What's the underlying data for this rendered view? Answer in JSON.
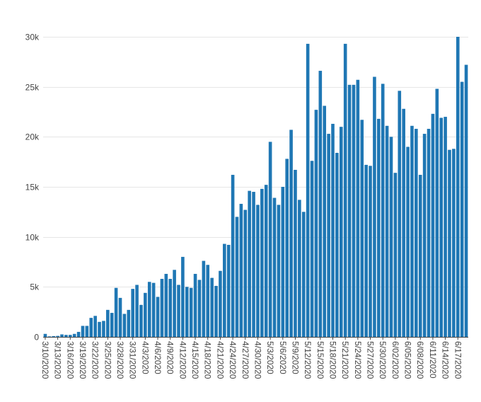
{
  "chart_data": {
    "type": "bar",
    "title": "",
    "xlabel": "",
    "ylabel": "",
    "ylim": [
      0,
      30000
    ],
    "grid": true,
    "legend": "none",
    "bar_color": "#1f77b4",
    "y_ticks": [
      0,
      5000,
      10000,
      15000,
      20000,
      25000,
      30000
    ],
    "y_tick_labels": [
      "0",
      "5k",
      "10k",
      "15k",
      "20k",
      "25k",
      "30k"
    ],
    "x_tick_labels": [
      "3/10/2020",
      "3/13/2020",
      "3/16/2020",
      "3/19/2020",
      "3/22/2020",
      "3/25/2020",
      "3/28/2020",
      "3/31/2020",
      "4/3/2020",
      "4/6/2020",
      "4/9/2020",
      "4/12/2020",
      "4/15/2020",
      "4/18/2020",
      "4/21/2020",
      "4/24/2020",
      "4/27/2020",
      "4/30/2020",
      "5/3/2020",
      "5/6/2020",
      "5/9/2020",
      "5/12/2020",
      "5/15/2020",
      "5/18/2020",
      "5/21/2020",
      "5/24/2020",
      "5/27/2020",
      "5/30/2020",
      "6/02/2020",
      "6/05/2020",
      "6/08/2020",
      "6/11/2020",
      "6/14/2020",
      "6/17/2020"
    ],
    "categories": [
      "3/10/2020",
      "3/11/2020",
      "3/12/2020",
      "3/13/2020",
      "3/14/2020",
      "3/15/2020",
      "3/16/2020",
      "3/17/2020",
      "3/18/2020",
      "3/19/2020",
      "3/20/2020",
      "3/21/2020",
      "3/22/2020",
      "3/23/2020",
      "3/24/2020",
      "3/25/2020",
      "3/26/2020",
      "3/27/2020",
      "3/28/2020",
      "3/29/2020",
      "3/30/2020",
      "3/31/2020",
      "4/1/2020",
      "4/2/2020",
      "4/3/2020",
      "4/4/2020",
      "4/5/2020",
      "4/6/2020",
      "4/7/2020",
      "4/8/2020",
      "4/9/2020",
      "4/10/2020",
      "4/11/2020",
      "4/12/2020",
      "4/13/2020",
      "4/14/2020",
      "4/15/2020",
      "4/16/2020",
      "4/17/2020",
      "4/18/2020",
      "4/19/2020",
      "4/20/2020",
      "4/21/2020",
      "4/22/2020",
      "4/23/2020",
      "4/24/2020",
      "4/25/2020",
      "4/26/2020",
      "4/27/2020",
      "4/28/2020",
      "4/29/2020",
      "4/30/2020",
      "5/1/2020",
      "5/2/2020",
      "5/3/2020",
      "5/4/2020",
      "5/5/2020",
      "5/6/2020",
      "5/7/2020",
      "5/8/2020",
      "5/9/2020",
      "5/10/2020",
      "5/11/2020",
      "5/12/2020",
      "5/13/2020",
      "5/14/2020",
      "5/15/2020",
      "5/16/2020",
      "5/17/2020",
      "5/18/2020",
      "5/19/2020",
      "5/20/2020",
      "5/21/2020",
      "5/22/2020",
      "5/23/2020",
      "5/24/2020",
      "5/25/2020",
      "5/26/2020",
      "5/27/2020",
      "5/28/2020",
      "5/29/2020",
      "5/30/2020",
      "5/31/2020",
      "6/01/2020",
      "6/02/2020",
      "6/03/2020",
      "6/04/2020",
      "6/05/2020",
      "6/06/2020",
      "6/07/2020",
      "6/08/2020",
      "6/09/2020",
      "6/10/2020",
      "6/11/2020",
      "6/12/2020",
      "6/13/2020",
      "6/14/2020",
      "6/15/2020",
      "6/16/2020",
      "6/17/2020",
      "6/18/2020",
      "6/19/2020"
    ],
    "values": [
      300,
      50,
      80,
      100,
      250,
      200,
      200,
      300,
      500,
      1100,
      1100,
      1900,
      2100,
      1500,
      1600,
      2700,
      2400,
      4900,
      3900,
      2300,
      2700,
      4800,
      5200,
      3200,
      4400,
      5500,
      5400,
      4000,
      5800,
      6300,
      5800,
      6700,
      5200,
      8000,
      5000,
      4900,
      6300,
      5700,
      7600,
      7200,
      5900,
      5100,
      6600,
      9300,
      9200,
      16200,
      12000,
      13300,
      12700,
      14600,
      14500,
      13200,
      14800,
      15200,
      19500,
      13900,
      13200,
      15000,
      17800,
      20700,
      16700,
      13700,
      12500,
      29300,
      17600,
      22700,
      26600,
      23100,
      20300,
      21300,
      18400,
      21000,
      29300,
      25200,
      25200,
      25700,
      21700,
      17200,
      17100,
      26000,
      21800,
      25300,
      21100,
      20000,
      16400,
      24600,
      22800,
      19000,
      21100,
      20800,
      16200,
      20300,
      20800,
      22300,
      24800,
      21900,
      22000,
      18700,
      18800,
      30000,
      25500,
      27200
    ]
  }
}
